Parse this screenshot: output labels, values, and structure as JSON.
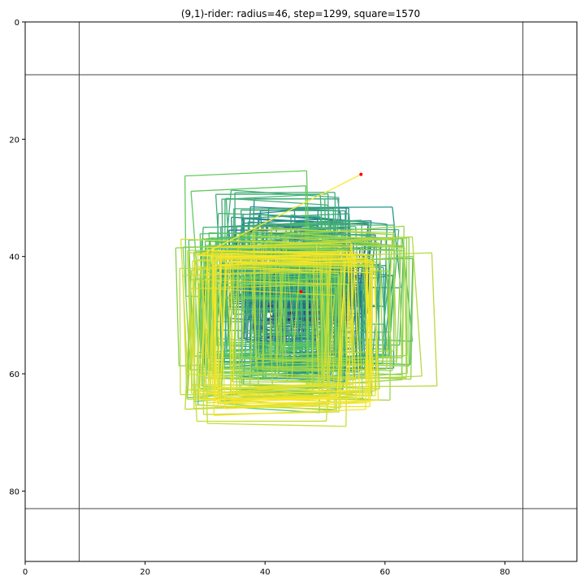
{
  "chart_data": {
    "type": "line",
    "title": "(9,1)-rider: radius=46, step=1299, square=1570",
    "xlabel": "",
    "ylabel": "",
    "xlim": [
      0,
      92
    ],
    "ylim": [
      92,
      0
    ],
    "y_inverted": true,
    "grid": false,
    "x_ticks": [
      0,
      20,
      40,
      60,
      80
    ],
    "y_ticks": [
      0,
      20,
      40,
      60,
      80
    ],
    "x_tick_labels": [
      "0",
      "20",
      "40",
      "60",
      "80"
    ],
    "y_tick_labels": [
      "0",
      "20",
      "40",
      "60",
      "80"
    ],
    "colormap": "viridis",
    "colormap_stops": [
      "#440154",
      "#3b528b",
      "#21918c",
      "#5ec962",
      "#fde725"
    ],
    "boundary_lines": {
      "vertical_x": [
        9,
        83
      ],
      "horizontal_y": [
        9,
        83
      ],
      "color": "#444444"
    },
    "path": {
      "start": [
        46,
        46
      ],
      "end": [
        56,
        26
      ],
      "marker_color": "#ff0000",
      "total_steps": 1299,
      "rider_move": [
        9,
        1
      ]
    }
  }
}
